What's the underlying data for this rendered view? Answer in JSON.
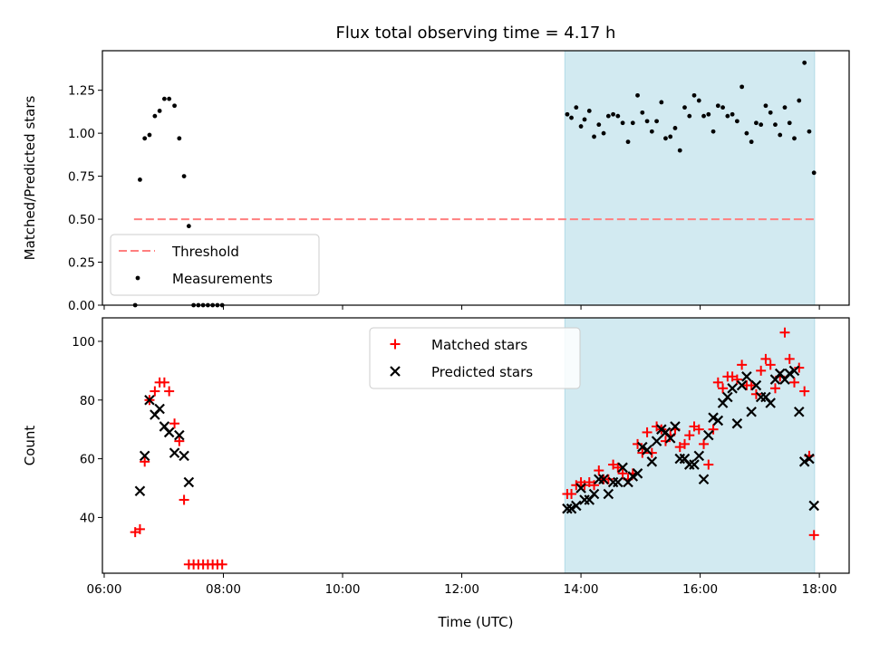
{
  "chart_data": {
    "title": "Flux total observing time = 4.17 h",
    "xlabel": "Time (UTC)",
    "x_unit": "hours UTC",
    "xlim": [
      5.97,
      18.5
    ],
    "x_ticks": [
      {
        "value": 6,
        "label": "06:00"
      },
      {
        "value": 8,
        "label": "08:00"
      },
      {
        "value": 10,
        "label": "10:00"
      },
      {
        "value": 12,
        "label": "12:00"
      },
      {
        "value": 14,
        "label": "14:00"
      },
      {
        "value": 16,
        "label": "16:00"
      },
      {
        "value": 18,
        "label": "18:00"
      }
    ],
    "shaded_span": {
      "from": 13.73,
      "to": 17.92,
      "color": "#add8e6"
    },
    "colors": {
      "threshold": "#ff7f7f",
      "measurements": "#000000",
      "matched": "#ff0000",
      "predicted": "#000000"
    },
    "panels": [
      {
        "type": "scatter",
        "ylabel": "Matched/Predicted stars",
        "ylim": [
          0,
          1.48
        ],
        "y_ticks": [
          {
            "value": 0,
            "label": "0.00"
          },
          {
            "value": 0.25,
            "label": "0.25"
          },
          {
            "value": 0.5,
            "label": "0.50"
          },
          {
            "value": 0.75,
            "label": "0.75"
          },
          {
            "value": 1.0,
            "label": "1.00"
          },
          {
            "value": 1.25,
            "label": "1.25"
          }
        ],
        "legend": {
          "placement": "lower-left",
          "entries": [
            "Threshold",
            "Measurements"
          ]
        },
        "threshold": {
          "name": "Threshold",
          "value": 0.5,
          "x_from": 6.5,
          "x_to": 17.92
        },
        "series": [
          {
            "name": "Measurements",
            "marker": "dot",
            "points": [
              [
                6.52,
                0.0
              ],
              [
                6.6,
                0.73
              ],
              [
                6.68,
                0.97
              ],
              [
                6.76,
                0.99
              ],
              [
                6.85,
                1.1
              ],
              [
                6.93,
                1.13
              ],
              [
                7.01,
                1.2
              ],
              [
                7.09,
                1.2
              ],
              [
                7.18,
                1.16
              ],
              [
                7.26,
                0.97
              ],
              [
                7.34,
                0.75
              ],
              [
                7.42,
                0.46
              ],
              [
                7.5,
                0.0
              ],
              [
                7.58,
                0.0
              ],
              [
                7.66,
                0.0
              ],
              [
                7.74,
                0.0
              ],
              [
                7.82,
                0.0
              ],
              [
                7.9,
                0.0
              ],
              [
                7.98,
                0.0
              ],
              [
                13.77,
                1.11
              ],
              [
                13.84,
                1.09
              ],
              [
                13.92,
                1.15
              ],
              [
                14.0,
                1.04
              ],
              [
                14.06,
                1.08
              ],
              [
                14.14,
                1.13
              ],
              [
                14.22,
                0.98
              ],
              [
                14.3,
                1.05
              ],
              [
                14.38,
                1.0
              ],
              [
                14.46,
                1.1
              ],
              [
                14.54,
                1.11
              ],
              [
                14.62,
                1.1
              ],
              [
                14.7,
                1.06
              ],
              [
                14.79,
                0.95
              ],
              [
                14.87,
                1.06
              ],
              [
                14.95,
                1.22
              ],
              [
                15.03,
                1.12
              ],
              [
                15.11,
                1.07
              ],
              [
                15.19,
                1.01
              ],
              [
                15.27,
                1.07
              ],
              [
                15.35,
                1.18
              ],
              [
                15.42,
                0.97
              ],
              [
                15.5,
                0.98
              ],
              [
                15.58,
                1.03
              ],
              [
                15.66,
                0.9
              ],
              [
                15.74,
                1.15
              ],
              [
                15.82,
                1.1
              ],
              [
                15.9,
                1.22
              ],
              [
                15.98,
                1.19
              ],
              [
                16.06,
                1.1
              ],
              [
                16.14,
                1.11
              ],
              [
                16.22,
                1.01
              ],
              [
                16.3,
                1.16
              ],
              [
                16.38,
                1.15
              ],
              [
                16.46,
                1.1
              ],
              [
                16.54,
                1.11
              ],
              [
                16.62,
                1.07
              ],
              [
                16.7,
                1.27
              ],
              [
                16.78,
                1.0
              ],
              [
                16.86,
                0.95
              ],
              [
                16.94,
                1.06
              ],
              [
                17.02,
                1.05
              ],
              [
                17.1,
                1.16
              ],
              [
                17.18,
                1.12
              ],
              [
                17.26,
                1.05
              ],
              [
                17.34,
                0.99
              ],
              [
                17.42,
                1.15
              ],
              [
                17.5,
                1.06
              ],
              [
                17.58,
                0.97
              ],
              [
                17.66,
                1.19
              ],
              [
                17.75,
                1.41
              ],
              [
                17.83,
                1.01
              ],
              [
                17.91,
                0.77
              ]
            ]
          }
        ]
      },
      {
        "type": "scatter",
        "ylabel": "Count",
        "ylim": [
          21,
          108
        ],
        "y_ticks": [
          {
            "value": 40,
            "label": "40"
          },
          {
            "value": 60,
            "label": "60"
          },
          {
            "value": 80,
            "label": "80"
          },
          {
            "value": 100,
            "label": "100"
          }
        ],
        "legend": {
          "placement": "upper-center",
          "entries": [
            "Matched stars",
            "Predicted stars"
          ]
        },
        "series": [
          {
            "name": "Matched stars",
            "marker": "plus",
            "points": [
              [
                6.52,
                35
              ],
              [
                6.6,
                36
              ],
              [
                6.68,
                59
              ],
              [
                6.76,
                80
              ],
              [
                6.85,
                83
              ],
              [
                6.93,
                86
              ],
              [
                7.01,
                86
              ],
              [
                7.09,
                83
              ],
              [
                7.18,
                72
              ],
              [
                7.26,
                66
              ],
              [
                7.34,
                46
              ],
              [
                7.42,
                24
              ],
              [
                7.5,
                24
              ],
              [
                7.58,
                24
              ],
              [
                7.66,
                24
              ],
              [
                7.74,
                24
              ],
              [
                7.82,
                24
              ],
              [
                7.9,
                24
              ],
              [
                7.98,
                24
              ],
              [
                13.77,
                48
              ],
              [
                13.84,
                48
              ],
              [
                13.92,
                51
              ],
              [
                14.0,
                52
              ],
              [
                14.06,
                51
              ],
              [
                14.14,
                52
              ],
              [
                14.22,
                51
              ],
              [
                14.3,
                56
              ],
              [
                14.38,
                53
              ],
              [
                14.46,
                53
              ],
              [
                14.54,
                58
              ],
              [
                14.62,
                57
              ],
              [
                14.7,
                55
              ],
              [
                14.79,
                53
              ],
              [
                14.87,
                55
              ],
              [
                14.95,
                65
              ],
              [
                15.03,
                62
              ],
              [
                15.11,
                69
              ],
              [
                15.19,
                62
              ],
              [
                15.27,
                71
              ],
              [
                15.35,
                70
              ],
              [
                15.42,
                66
              ],
              [
                15.5,
                68
              ],
              [
                15.58,
                70
              ],
              [
                15.66,
                64
              ],
              [
                15.74,
                65
              ],
              [
                15.82,
                68
              ],
              [
                15.9,
                71
              ],
              [
                15.98,
                70
              ],
              [
                16.06,
                65
              ],
              [
                16.14,
                58
              ],
              [
                16.22,
                70
              ],
              [
                16.3,
                86
              ],
              [
                16.38,
                84
              ],
              [
                16.46,
                88
              ],
              [
                16.54,
                88
              ],
              [
                16.62,
                87
              ],
              [
                16.7,
                92
              ],
              [
                16.78,
                85
              ],
              [
                16.86,
                85
              ],
              [
                16.94,
                82
              ],
              [
                17.02,
                90
              ],
              [
                17.1,
                94
              ],
              [
                17.18,
                92
              ],
              [
                17.26,
                84
              ],
              [
                17.34,
                88
              ],
              [
                17.42,
                103
              ],
              [
                17.5,
                94
              ],
              [
                17.58,
                86
              ],
              [
                17.66,
                91
              ],
              [
                17.75,
                83
              ],
              [
                17.83,
                61
              ],
              [
                17.91,
                34
              ]
            ]
          },
          {
            "name": "Predicted stars",
            "marker": "cross",
            "points": [
              [
                6.6,
                49
              ],
              [
                6.68,
                61
              ],
              [
                6.76,
                80
              ],
              [
                6.85,
                75
              ],
              [
                6.93,
                77
              ],
              [
                7.01,
                71
              ],
              [
                7.09,
                69
              ],
              [
                7.18,
                62
              ],
              [
                7.26,
                68
              ],
              [
                7.34,
                61
              ],
              [
                7.42,
                52
              ],
              [
                13.77,
                43
              ],
              [
                13.84,
                43
              ],
              [
                13.92,
                44
              ],
              [
                14.0,
                50
              ],
              [
                14.06,
                46
              ],
              [
                14.14,
                46
              ],
              [
                14.22,
                48
              ],
              [
                14.3,
                53
              ],
              [
                14.38,
                53
              ],
              [
                14.46,
                48
              ],
              [
                14.54,
                52
              ],
              [
                14.62,
                52
              ],
              [
                14.7,
                57
              ],
              [
                14.79,
                52
              ],
              [
                14.87,
                54
              ],
              [
                14.95,
                55
              ],
              [
                15.03,
                64
              ],
              [
                15.11,
                63
              ],
              [
                15.19,
                59
              ],
              [
                15.27,
                66
              ],
              [
                15.35,
                70
              ],
              [
                15.42,
                69
              ],
              [
                15.5,
                67
              ],
              [
                15.58,
                71
              ],
              [
                15.66,
                60
              ],
              [
                15.74,
                60
              ],
              [
                15.82,
                58
              ],
              [
                15.9,
                58
              ],
              [
                15.98,
                61
              ],
              [
                16.06,
                53
              ],
              [
                16.14,
                68
              ],
              [
                16.22,
                74
              ],
              [
                16.3,
                73
              ],
              [
                16.38,
                79
              ],
              [
                16.46,
                81
              ],
              [
                16.54,
                84
              ],
              [
                16.62,
                72
              ],
              [
                16.7,
                85
              ],
              [
                16.78,
                88
              ],
              [
                16.86,
                76
              ],
              [
                16.94,
                85
              ],
              [
                17.02,
                81
              ],
              [
                17.1,
                81
              ],
              [
                17.18,
                79
              ],
              [
                17.26,
                87
              ],
              [
                17.34,
                89
              ],
              [
                17.42,
                87
              ],
              [
                17.5,
                89
              ],
              [
                17.58,
                90
              ],
              [
                17.66,
                76
              ],
              [
                17.75,
                59
              ],
              [
                17.83,
                60
              ],
              [
                17.91,
                44
              ]
            ]
          }
        ]
      }
    ]
  }
}
